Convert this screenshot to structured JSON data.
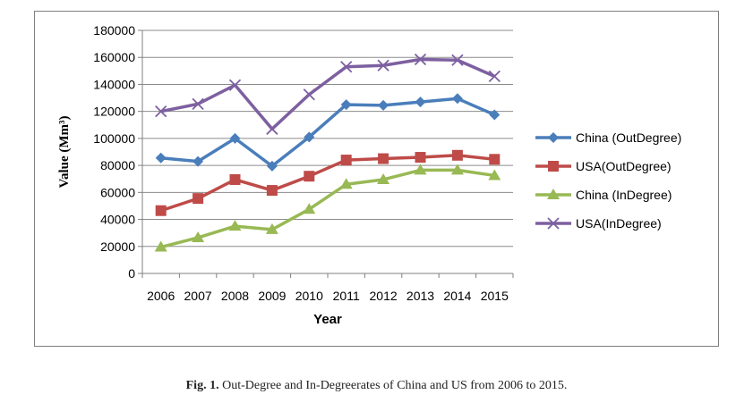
{
  "caption": {
    "label": "Fig. 1.",
    "text": "Out-Degree and In-Degreerates of China and US from 2006 to 2015."
  },
  "chart_data": {
    "type": "line",
    "xlabel": "Year",
    "ylabel": "Value (Mm³)",
    "ylim": [
      0,
      180000
    ],
    "yticks": [
      0,
      20000,
      40000,
      60000,
      80000,
      100000,
      120000,
      140000,
      160000,
      180000
    ],
    "categories": [
      "2006",
      "2007",
      "2008",
      "2009",
      "2010",
      "2011",
      "2012",
      "2013",
      "2014",
      "2015"
    ],
    "grid": "horizontal",
    "legend_position": "right",
    "series": [
      {
        "name": "China  (OutDegree)",
        "color": "#4a7ebb",
        "marker": "diamond",
        "values": [
          85500,
          83000,
          100000,
          79500,
          101000,
          125000,
          124500,
          127000,
          129500,
          117500
        ]
      },
      {
        "name": "USA(OutDegree)",
        "color": "#be4b48",
        "marker": "square",
        "values": [
          46500,
          55500,
          69500,
          61500,
          72000,
          84000,
          85000,
          86000,
          87500,
          84500
        ]
      },
      {
        "name": "China  (InDegree)",
        "color": "#98b954",
        "marker": "triangle",
        "values": [
          19500,
          26500,
          35000,
          32500,
          47500,
          66000,
          69500,
          76500,
          76500,
          72500
        ]
      },
      {
        "name": "USA(InDegree)",
        "color": "#7d60a0",
        "marker": "x",
        "values": [
          120000,
          125500,
          139500,
          107000,
          132500,
          153000,
          154000,
          158500,
          158000,
          146000
        ]
      }
    ]
  }
}
